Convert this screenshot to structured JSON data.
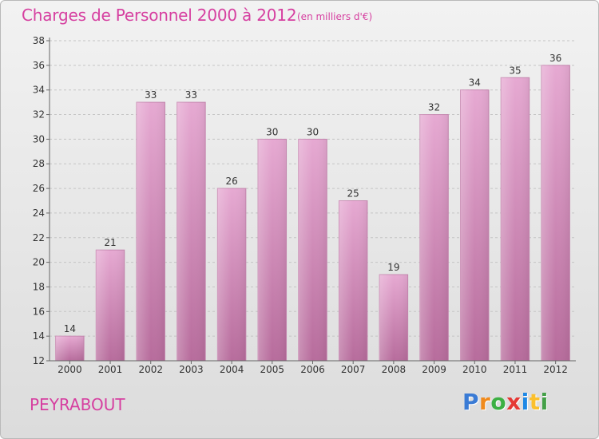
{
  "header": {
    "title": "Charges de Personnel 2000 à 2012",
    "subtitle": "(en milliers d'€)"
  },
  "footer": {
    "city": "PEYRABOUT",
    "logo_letters": [
      {
        "char": "P",
        "color": "#3a7bd5"
      },
      {
        "char": "r",
        "color": "#f08a1c"
      },
      {
        "char": "o",
        "color": "#3cb043"
      },
      {
        "char": "x",
        "color": "#e53935"
      },
      {
        "char": "i",
        "color": "#1e88e5"
      },
      {
        "char": "t",
        "color": "#fbc02d"
      },
      {
        "char": "i",
        "color": "#43a047"
      }
    ]
  },
  "chart_data": {
    "type": "bar",
    "title": "Charges de Personnel 2000 à 2012",
    "subtitle": "(en milliers d'€)",
    "xlabel": "",
    "ylabel": "",
    "categories": [
      "2000",
      "2001",
      "2002",
      "2003",
      "2004",
      "2005",
      "2006",
      "2007",
      "2008",
      "2009",
      "2010",
      "2011",
      "2012"
    ],
    "values": [
      14,
      21,
      33,
      33,
      26,
      30,
      30,
      25,
      19,
      32,
      34,
      35,
      36
    ],
    "ylim": [
      12,
      38
    ],
    "yticks": [
      12,
      14,
      16,
      18,
      20,
      22,
      24,
      26,
      28,
      30,
      32,
      34,
      36,
      38
    ],
    "grid": true,
    "bar_color": "#d98fbf"
  }
}
